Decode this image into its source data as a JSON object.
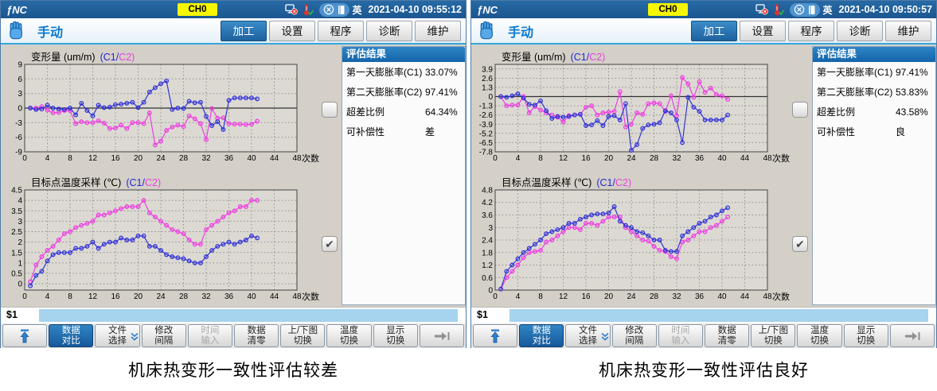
{
  "brand": "ƒNC",
  "colors": {
    "c1_series": "#3333d6",
    "c2_series": "#ee3fe0",
    "accent": "#1f6cb4",
    "channel_badge": "#f6f600"
  },
  "softkeys": [
    {
      "name": "return",
      "icon": "return-up-icon"
    },
    {
      "line1": "数据",
      "line2": "对比",
      "active": true
    },
    {
      "line1": "文件",
      "line2": "选择",
      "chevron": true
    },
    {
      "line1": "修改",
      "line2": "间隔"
    },
    {
      "line1": "时间",
      "line2": "输入",
      "disabled": true
    },
    {
      "line1": "数据",
      "line2": "清零"
    },
    {
      "line1": "上/下图",
      "line2": "切换"
    },
    {
      "line1": "温度",
      "line2": "切换"
    },
    {
      "line1": "显示",
      "line2": "切换"
    },
    {
      "name": "next",
      "icon": "next-page-icon"
    }
  ],
  "panels": [
    {
      "header": {
        "channel": "CH0",
        "lang": "英",
        "datetime": "2021-04-10 09:55:12"
      },
      "nav": {
        "mode": "手动",
        "tabs": [
          {
            "label": "加工",
            "active": true
          },
          {
            "label": "设置"
          },
          {
            "label": "程序"
          },
          {
            "label": "诊断"
          },
          {
            "label": "维护"
          }
        ]
      },
      "eval": {
        "title": "评估结果",
        "rows": [
          {
            "label": "第一天膨胀率(C1)",
            "value": "33.07%"
          },
          {
            "label": "第二天膨胀率(C2)",
            "value": "97.41%"
          },
          {
            "label": "超差比例",
            "value": "64.34%"
          },
          {
            "label": "可补偿性",
            "value": "差"
          }
        ]
      },
      "checkboxes": {
        "top_chart": false,
        "bottom_chart": true
      },
      "prompt": "$1",
      "caption": "机床热变形一致性评估较差"
    },
    {
      "header": {
        "channel": "CH0",
        "lang": "英",
        "datetime": "2021-04-10 09:50:57"
      },
      "nav": {
        "mode": "手动",
        "tabs": [
          {
            "label": "加工",
            "active": true
          },
          {
            "label": "设置"
          },
          {
            "label": "程序"
          },
          {
            "label": "诊断"
          },
          {
            "label": "维护"
          }
        ]
      },
      "eval": {
        "title": "评估结果",
        "rows": [
          {
            "label": "第一天膨胀率(C1)",
            "value": "97.41%"
          },
          {
            "label": "第二天膨胀率(C2)",
            "value": "53.83%"
          },
          {
            "label": "超差比例",
            "value": "43.58%"
          },
          {
            "label": "可补偿性",
            "value": "良"
          }
        ]
      },
      "checkboxes": {
        "top_chart": false,
        "bottom_chart": true
      },
      "prompt": "$1",
      "caption": "机床热变形一致性评估良好"
    }
  ],
  "chart_data": [
    {
      "type": "line",
      "title": "变形量 (um/m)",
      "legend_c1": "(C1/",
      "legend_c2": "C2)",
      "xlabel": "次数",
      "xlim": [
        0,
        48
      ],
      "xticks": [
        0,
        4,
        8,
        12,
        16,
        20,
        24,
        28,
        32,
        36,
        40,
        44,
        48
      ],
      "ylim": [
        -9,
        9
      ],
      "yticks": [
        9,
        6,
        3,
        0,
        -3,
        -6,
        -9
      ],
      "zero_line": true,
      "grid": "dotted",
      "x_start": 1,
      "series": [
        {
          "name": "C1",
          "color": "#3333d6",
          "values": [
            0,
            -0.3,
            -0.2,
            0.6,
            0,
            -0.2,
            -0.3,
            0,
            -1.4,
            1.0,
            -0.5,
            -1.6,
            0.6,
            0.1,
            0.2,
            0.7,
            0.8,
            1.0,
            1.2,
            0.1,
            1.2,
            3.3,
            4.2,
            5.0,
            5.6,
            -0.3,
            0,
            -0.1,
            1.4,
            1.1,
            1.2,
            -1.7,
            -3.6,
            -2.8,
            -4.4,
            1.6,
            2.1,
            2.1,
            2.1,
            2.1,
            1.9
          ]
        },
        {
          "name": "C2",
          "color": "#ee3fe0",
          "values": [
            0,
            0,
            0.3,
            -0.4,
            -1.0,
            -0.9,
            -0.5,
            -0.5,
            -3.2,
            -2.8,
            -3.0,
            -3.0,
            -2.6,
            -3.1,
            -4.2,
            -4.1,
            -3.5,
            -4.2,
            -3.0,
            -3.0,
            -3.2,
            -1.0,
            -7.6,
            -6.8,
            -4.6,
            -3.9,
            -3.5,
            -3.8,
            -1.6,
            -2.2,
            -3.2,
            -6.5,
            -0.1,
            -2.1,
            -2.0,
            -3.2,
            -3.3,
            -3.3,
            -3.4,
            -3.3,
            -2.7
          ]
        }
      ]
    },
    {
      "type": "line",
      "title": "目标点温度采样 (℃)",
      "legend_c1": "(C1/",
      "legend_c2": "C2)",
      "xlabel": "次数",
      "xlim": [
        0,
        48
      ],
      "xticks": [
        0,
        4,
        8,
        12,
        16,
        20,
        24,
        28,
        32,
        36,
        40,
        44,
        48
      ],
      "ylim": [
        -0.3,
        4.5
      ],
      "yticks": [
        4.5,
        4,
        3.5,
        3,
        2.5,
        2,
        1.5,
        1,
        0.5,
        0
      ],
      "zero_line": false,
      "grid": "dotted",
      "x_start": 1,
      "series": [
        {
          "name": "C1",
          "color": "#3333d6",
          "values": [
            -0.1,
            0.4,
            0.6,
            1.1,
            1.4,
            1.5,
            1.5,
            1.5,
            1.7,
            1.7,
            1.8,
            2.0,
            1.7,
            1.9,
            2.0,
            2.0,
            2.2,
            2.1,
            2.1,
            2.3,
            2.3,
            1.8,
            1.8,
            1.6,
            1.4,
            1.3,
            1.25,
            1.2,
            1.1,
            1.0,
            1.0,
            1.3,
            1.6,
            1.8,
            1.9,
            2.0,
            1.9,
            2.0,
            2.1,
            2.3,
            2.2
          ]
        },
        {
          "name": "C2",
          "color": "#ee3fe0",
          "values": [
            0.1,
            0.9,
            1.3,
            1.6,
            1.8,
            2.1,
            2.4,
            2.5,
            2.7,
            2.8,
            2.9,
            3.0,
            3.3,
            3.3,
            3.4,
            3.5,
            3.6,
            3.7,
            3.7,
            3.7,
            4.0,
            3.4,
            3.2,
            3.0,
            2.8,
            2.6,
            2.5,
            2.4,
            2.1,
            1.9,
            1.9,
            2.6,
            2.8,
            3.0,
            3.2,
            3.4,
            3.5,
            3.7,
            3.7,
            4.0,
            4.0
          ]
        }
      ]
    },
    {
      "type": "line",
      "title": "变形量 (um/m)",
      "legend_c1": "(C1/",
      "legend_c2": "C2)",
      "xlabel": "次数",
      "xlim": [
        0,
        48
      ],
      "xticks": [
        0,
        4,
        8,
        12,
        16,
        20,
        24,
        28,
        32,
        36,
        40,
        44,
        48
      ],
      "ylim": [
        -7.8,
        4.55
      ],
      "yticks": [
        3.9,
        2.6,
        1.3,
        0,
        -1.3,
        -2.6,
        -3.9,
        -5.2,
        -6.5,
        -7.8
      ],
      "zero_line": true,
      "grid": "dotted",
      "x_start": 1,
      "series": [
        {
          "name": "C1",
          "color": "#3333d6",
          "values": [
            0,
            -0.1,
            0.1,
            0.4,
            -0.2,
            -1.1,
            -1.2,
            -0.6,
            -2.0,
            -3.1,
            -2.8,
            -2.9,
            -2.8,
            -2.6,
            -2.5,
            -4.1,
            -4.0,
            -3.4,
            -4.1,
            -2.8,
            -2.7,
            -3.3,
            -1.0,
            -7.6,
            -6.8,
            -4.5,
            -4.0,
            -3.9,
            -3.7,
            -2.0,
            -2.3,
            -3.3,
            -6.5,
            -0.1,
            -1.5,
            -2.1,
            -3.3,
            -3.3,
            -3.3,
            -3.3,
            -2.6
          ]
        },
        {
          "name": "C2",
          "color": "#ee3fe0",
          "values": [
            0,
            -1.3,
            -1.2,
            -1.2,
            0,
            -2.3,
            -1.4,
            -1.9,
            -2.3,
            -2.6,
            -2.9,
            -3.6,
            -2.7,
            -2.6,
            -2.5,
            -1.5,
            -1.3,
            -2.6,
            -2.3,
            -2.2,
            -2.1,
            0.7,
            -4.3,
            -3.9,
            -2.3,
            -2.5,
            -1.0,
            -0.9,
            -1.0,
            -2.1,
            0.1,
            -2.7,
            2.7,
            1.8,
            -0.1,
            2.1,
            0.6,
            1.2,
            0.3,
            0.1,
            -0.4
          ]
        }
      ]
    },
    {
      "type": "line",
      "title": "目标点温度采样 (℃)",
      "legend_c1": "(C1/",
      "legend_c2": "C2)",
      "xlabel": "次数",
      "xlim": [
        0,
        48
      ],
      "xticks": [
        0,
        4,
        8,
        12,
        16,
        20,
        24,
        28,
        32,
        36,
        40,
        44,
        48
      ],
      "ylim": [
        0,
        4.8
      ],
      "yticks": [
        4.8,
        4.2,
        3.6,
        3,
        2.4,
        1.8,
        1.2,
        0.6,
        0
      ],
      "zero_line": false,
      "grid": "dotted",
      "x_start": 1,
      "series": [
        {
          "name": "C1",
          "color": "#3333d6",
          "values": [
            0.05,
            0.9,
            1.2,
            1.5,
            1.8,
            2.0,
            2.2,
            2.4,
            2.7,
            2.8,
            2.9,
            3.0,
            3.2,
            3.2,
            3.4,
            3.5,
            3.6,
            3.65,
            3.65,
            3.7,
            4.0,
            3.3,
            3.1,
            3.0,
            2.8,
            2.75,
            2.6,
            2.4,
            2.4,
            1.9,
            1.85,
            1.85,
            2.6,
            2.8,
            3.0,
            3.2,
            3.3,
            3.5,
            3.6,
            3.8,
            3.95
          ]
        },
        {
          "name": "C2",
          "color": "#ee3fe0",
          "values": [
            0.05,
            0.6,
            0.9,
            1.2,
            1.55,
            1.8,
            1.85,
            1.9,
            2.3,
            2.4,
            2.6,
            2.8,
            3.0,
            3.0,
            2.9,
            3.2,
            3.2,
            3.1,
            3.3,
            3.5,
            3.5,
            3.5,
            3.0,
            2.8,
            2.6,
            2.4,
            2.35,
            2.1,
            1.9,
            1.85,
            1.6,
            1.5,
            2.3,
            2.4,
            2.6,
            2.8,
            2.8,
            3.0,
            3.1,
            3.3,
            3.5
          ]
        }
      ]
    }
  ]
}
